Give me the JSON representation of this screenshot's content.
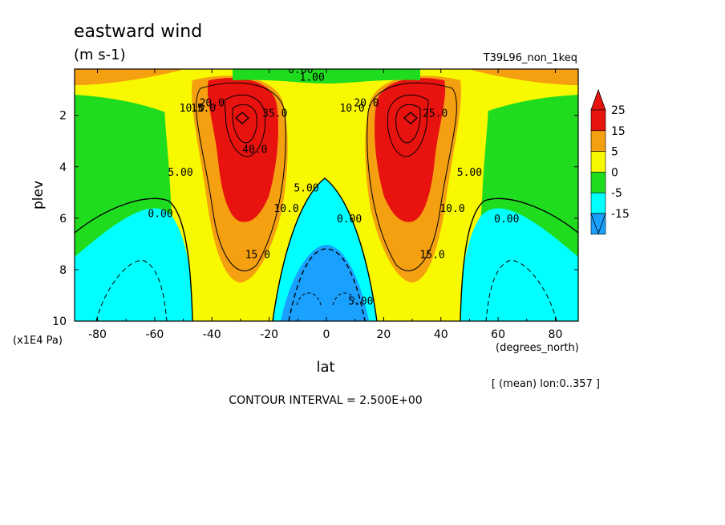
{
  "chart_data": {
    "type": "contour",
    "title": "eastward wind",
    "units": "(m s-1)",
    "run_label": "T39L96_non_1keq",
    "xlabel": "lat",
    "x_units": "(degrees_north)",
    "ylabel": "plev",
    "y_units": "(x1E4 Pa)",
    "x_ticks": [
      "-80",
      "-60",
      "-40",
      "-20",
      "0",
      "20",
      "40",
      "60",
      "80"
    ],
    "y_ticks": [
      "2",
      "4",
      "6",
      "8",
      "10"
    ],
    "xlim": [
      -88,
      88
    ],
    "ylim": [
      0.2,
      10
    ],
    "y_inverted": true,
    "contour_interval_text": "CONTOUR INTERVAL = 2.500E+00",
    "footer_note": "[ (mean) lon:0..357 ]",
    "colorbar": {
      "levels": [
        "25",
        "15",
        "5",
        "0",
        "-5",
        "-15"
      ],
      "colors": [
        "#e8130f",
        "#f4a010",
        "#f8f800",
        "#1fdc1f",
        "#00ffff",
        "#1aa0ff"
      ]
    },
    "fill_colors": {
      "strong_positive": "#e8130f",
      "positive": "#f4a010",
      "weak_positive": "#f8f800",
      "near_zero": "#1fdc1f",
      "negative": "#00ffff",
      "strong_negative": "#1aa0ff"
    },
    "jets": [
      {
        "name": "southern jet core",
        "lat": -28,
        "plev": 2.0,
        "max_wind": 42.5
      },
      {
        "name": "northern jet core",
        "lat": 28,
        "plev": 2.0,
        "max_wind": 42.5
      }
    ],
    "contour_labels": [
      {
        "text": "5.00",
        "lat": -51,
        "plev": 4.2
      },
      {
        "text": "0.00",
        "lat": -58,
        "plev": 5.8
      },
      {
        "text": "15.0",
        "lat": -43,
        "plev": 1.7
      },
      {
        "text": "10.0",
        "lat": -47,
        "plev": 1.7
      },
      {
        "text": "20.0",
        "lat": -40,
        "plev": 1.5
      },
      {
        "text": "35.0",
        "lat": -18,
        "plev": 1.9
      },
      {
        "text": "40.0",
        "lat": -25,
        "plev": 3.3
      },
      {
        "text": "10.0",
        "lat": -14,
        "plev": 5.6
      },
      {
        "text": "5.00",
        "lat": -7,
        "plev": 4.8
      },
      {
        "text": "15.0",
        "lat": -24,
        "plev": 7.4
      },
      {
        "text": "0.00",
        "lat": 8,
        "plev": 6.0
      },
      {
        "text": "5.00",
        "lat": 12,
        "plev": 9.2
      },
      {
        "text": "10.0",
        "lat": 9,
        "plev": 1.7
      },
      {
        "text": "20.0",
        "lat": 14,
        "plev": 1.5
      },
      {
        "text": "25.0",
        "lat": 38,
        "plev": 1.9
      },
      {
        "text": "10.0",
        "lat": 44,
        "plev": 5.6
      },
      {
        "text": "5.00",
        "lat": 50,
        "plev": 4.2
      },
      {
        "text": "15.0",
        "lat": 37,
        "plev": 7.4
      },
      {
        "text": "0.00",
        "lat": 63,
        "plev": 6.0
      },
      {
        "text": "0.00",
        "lat": -9,
        "plev": 0.2
      },
      {
        "text": "1.00",
        "lat": -5,
        "plev": 0.5
      }
    ]
  }
}
